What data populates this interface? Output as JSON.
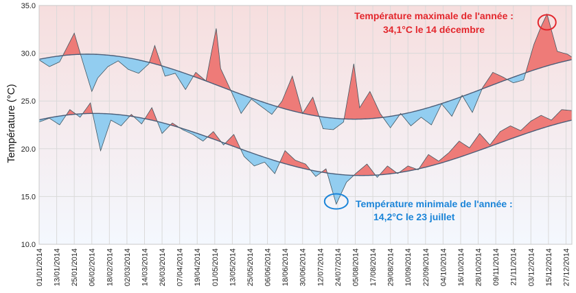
{
  "colors": {
    "bg_top": "#f6dede",
    "bg_bottom": "#f4f8fe",
    "above": "#ee7b78",
    "below": "#92cdf0",
    "normal_line": "#4a5d78",
    "obs_line": "#3f5560",
    "max_annotation": "#e3262c",
    "min_annotation": "#1a84d8",
    "grid": "#d9d9d9"
  },
  "chart_data": {
    "type": "area",
    "title": "",
    "xlabel": "",
    "ylabel": "Température (°C)",
    "ylim": [
      10,
      35
    ],
    "yticks": [
      10,
      15,
      20,
      25,
      30,
      35
    ],
    "ytick_labels": [
      "10.0",
      "15.0",
      "20.0",
      "25.0",
      "30.0",
      "35.0"
    ],
    "xlim": [
      "01/01/2014",
      "31/12/2014"
    ],
    "xtick_labels": [
      "01/01/2014",
      "13/01/2014",
      "25/01/2014",
      "06/02/2014",
      "18/02/2014",
      "02/03/2014",
      "14/03/2014",
      "26/03/2014",
      "07/04/2014",
      "19/04/2014",
      "01/05/2014",
      "13/05/2014",
      "25/05/2014",
      "06/06/2014",
      "18/06/2014",
      "30/06/2014",
      "12/07/2014",
      "24/07/2014",
      "05/08/2014",
      "17/08/2014",
      "29/08/2014",
      "10/09/2014",
      "22/09/2014",
      "04/10/2014",
      "16/10/2014",
      "28/10/2014",
      "09/11/2014",
      "21/11/2014",
      "03/12/2014",
      "15/12/2014",
      "27/12/2014"
    ],
    "normals": {
      "tmax": {
        "annual_mean": 26.5,
        "amplitude": 3.4,
        "peak_date": "03/02/2014"
      },
      "tmin": {
        "annual_mean": 20.45,
        "amplitude": 3.25,
        "peak_date": "08/02/2014"
      }
    },
    "series": [
      {
        "name_hint": "tmax",
        "points": [
          [
            "01/01/2014",
            29.3
          ],
          [
            "08/01/2014",
            28.6
          ],
          [
            "15/01/2014",
            29.1
          ],
          [
            "22/01/2014",
            31.2
          ],
          [
            "25/01/2014",
            32.1
          ],
          [
            "31/01/2014",
            29.0
          ],
          [
            "06/02/2014",
            26.0
          ],
          [
            "10/02/2014",
            27.4
          ],
          [
            "17/02/2014",
            28.6
          ],
          [
            "24/02/2014",
            29.2
          ],
          [
            "03/03/2014",
            28.3
          ],
          [
            "10/03/2014",
            27.9
          ],
          [
            "17/03/2014",
            28.9
          ],
          [
            "21/03/2014",
            30.8
          ],
          [
            "28/03/2014",
            27.6
          ],
          [
            "04/04/2014",
            27.9
          ],
          [
            "11/04/2014",
            26.2
          ],
          [
            "18/04/2014",
            28.0
          ],
          [
            "25/04/2014",
            27.1
          ],
          [
            "29/04/2014",
            30.3
          ],
          [
            "02/05/2014",
            32.6
          ],
          [
            "05/05/2014",
            28.4
          ],
          [
            "12/05/2014",
            26.1
          ],
          [
            "19/05/2014",
            23.7
          ],
          [
            "26/05/2014",
            25.2
          ],
          [
            "02/06/2014",
            24.4
          ],
          [
            "09/06/2014",
            23.6
          ],
          [
            "16/06/2014",
            25.0
          ],
          [
            "23/06/2014",
            27.6
          ],
          [
            "30/06/2014",
            23.7
          ],
          [
            "07/07/2014",
            25.4
          ],
          [
            "14/07/2014",
            22.1
          ],
          [
            "21/07/2014",
            22.0
          ],
          [
            "28/07/2014",
            22.8
          ],
          [
            "04/08/2014",
            28.9
          ],
          [
            "08/08/2014",
            24.3
          ],
          [
            "15/08/2014",
            26.0
          ],
          [
            "22/08/2014",
            23.7
          ],
          [
            "29/08/2014",
            22.2
          ],
          [
            "05/09/2014",
            23.7
          ],
          [
            "12/09/2014",
            22.4
          ],
          [
            "19/09/2014",
            23.3
          ],
          [
            "26/09/2014",
            22.5
          ],
          [
            "03/10/2014",
            24.7
          ],
          [
            "10/10/2014",
            23.4
          ],
          [
            "17/10/2014",
            25.6
          ],
          [
            "24/10/2014",
            23.8
          ],
          [
            "31/10/2014",
            26.4
          ],
          [
            "07/11/2014",
            28.0
          ],
          [
            "14/11/2014",
            27.5
          ],
          [
            "21/11/2014",
            26.9
          ],
          [
            "28/11/2014",
            27.2
          ],
          [
            "05/12/2014",
            30.9
          ],
          [
            "10/12/2014",
            32.8
          ],
          [
            "14/12/2014",
            34.1
          ],
          [
            "21/12/2014",
            30.2
          ],
          [
            "28/12/2014",
            29.9
          ],
          [
            "31/12/2014",
            29.6
          ]
        ]
      },
      {
        "name_hint": "tmin",
        "points": [
          [
            "01/01/2014",
            22.8
          ],
          [
            "08/01/2014",
            23.2
          ],
          [
            "15/01/2014",
            22.5
          ],
          [
            "22/01/2014",
            24.1
          ],
          [
            "29/01/2014",
            23.3
          ],
          [
            "05/02/2014",
            24.8
          ],
          [
            "12/02/2014",
            19.8
          ],
          [
            "19/02/2014",
            23.0
          ],
          [
            "26/02/2014",
            22.4
          ],
          [
            "05/03/2014",
            23.6
          ],
          [
            "12/03/2014",
            22.6
          ],
          [
            "19/03/2014",
            24.3
          ],
          [
            "26/03/2014",
            21.6
          ],
          [
            "02/04/2014",
            22.7
          ],
          [
            "09/04/2014",
            22.0
          ],
          [
            "16/04/2014",
            21.5
          ],
          [
            "23/04/2014",
            20.8
          ],
          [
            "30/04/2014",
            21.8
          ],
          [
            "07/05/2014",
            20.4
          ],
          [
            "14/05/2014",
            21.5
          ],
          [
            "21/05/2014",
            19.2
          ],
          [
            "28/05/2014",
            18.2
          ],
          [
            "04/06/2014",
            18.6
          ],
          [
            "11/06/2014",
            17.4
          ],
          [
            "18/06/2014",
            19.8
          ],
          [
            "25/06/2014",
            18.8
          ],
          [
            "02/07/2014",
            18.4
          ],
          [
            "09/07/2014",
            17.1
          ],
          [
            "16/07/2014",
            17.9
          ],
          [
            "23/07/2014",
            14.2
          ],
          [
            "30/07/2014",
            16.5
          ],
          [
            "06/08/2014",
            17.5
          ],
          [
            "13/08/2014",
            18.4
          ],
          [
            "20/08/2014",
            17.0
          ],
          [
            "27/08/2014",
            18.2
          ],
          [
            "03/09/2014",
            17.4
          ],
          [
            "10/09/2014",
            18.2
          ],
          [
            "17/09/2014",
            17.8
          ],
          [
            "24/09/2014",
            19.4
          ],
          [
            "01/10/2014",
            18.7
          ],
          [
            "08/10/2014",
            19.6
          ],
          [
            "15/10/2014",
            20.8
          ],
          [
            "22/10/2014",
            20.1
          ],
          [
            "29/10/2014",
            21.6
          ],
          [
            "05/11/2014",
            20.4
          ],
          [
            "12/11/2014",
            21.8
          ],
          [
            "19/11/2014",
            22.4
          ],
          [
            "26/11/2014",
            21.9
          ],
          [
            "03/12/2014",
            22.9
          ],
          [
            "10/12/2014",
            23.5
          ],
          [
            "17/12/2014",
            23.0
          ],
          [
            "24/12/2014",
            24.1
          ],
          [
            "31/12/2014",
            24.0
          ]
        ]
      }
    ],
    "annotations": {
      "max": {
        "line1": "Température maximale de l'année :",
        "line2": "34,1°C le 14 décembre",
        "date": "14/12/2014",
        "value": 34.1
      },
      "min": {
        "line1": "Température minimale de l'année :",
        "line2": "14,2°C le 23 juillet",
        "date": "23/07/2014",
        "value": 14.2
      }
    }
  }
}
